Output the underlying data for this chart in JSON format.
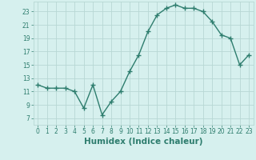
{
  "x": [
    0,
    1,
    2,
    3,
    4,
    5,
    6,
    7,
    8,
    9,
    10,
    11,
    12,
    13,
    14,
    15,
    16,
    17,
    18,
    19,
    20,
    21,
    22,
    23
  ],
  "y": [
    12,
    11.5,
    11.5,
    11.5,
    11,
    8.5,
    12,
    7.5,
    9.5,
    11,
    14,
    16.5,
    20,
    22.5,
    23.5,
    24,
    23.5,
    23.5,
    23.0,
    21.5,
    19.5,
    19,
    15,
    16.5
  ],
  "line_color": "#2e7d6e",
  "marker": "+",
  "marker_size": 4,
  "marker_edge_width": 1.0,
  "bg_color": "#d6f0ee",
  "grid_color": "#b8d8d4",
  "xlabel": "Humidex (Indice chaleur)",
  "xlim": [
    -0.5,
    23.5
  ],
  "ylim": [
    6,
    24.5
  ],
  "yticks": [
    7,
    9,
    11,
    13,
    15,
    17,
    19,
    21,
    23
  ],
  "xticks": [
    0,
    1,
    2,
    3,
    4,
    5,
    6,
    7,
    8,
    9,
    10,
    11,
    12,
    13,
    14,
    15,
    16,
    17,
    18,
    19,
    20,
    21,
    22,
    23
  ],
  "tick_fontsize": 5.5,
  "label_fontsize": 7.5,
  "line_width": 1.0
}
